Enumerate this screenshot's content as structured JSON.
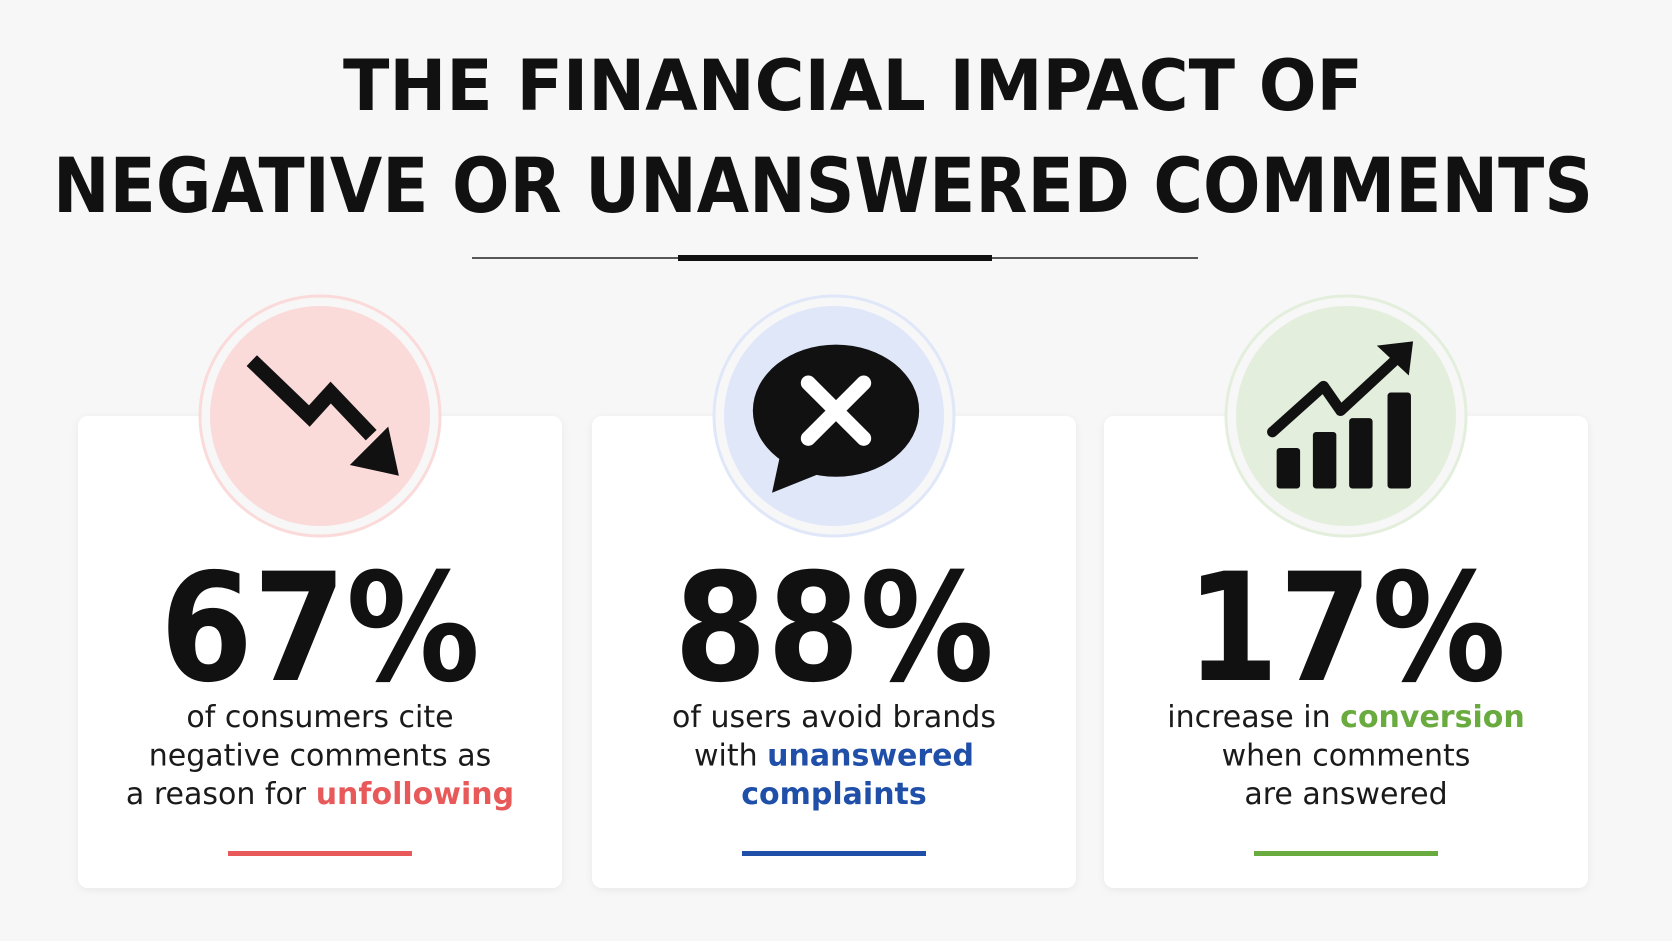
{
  "header": {
    "title_line1": "THE FINANCIAL IMPACT OF",
    "title_line2": "NEGATIVE OR UNANSWERED COMMENTS"
  },
  "cards": [
    {
      "stat": "67%",
      "accent": "#e85a5a",
      "circle": "#fbdada",
      "lines": [
        [
          {
            "text": "of consumers cite",
            "accent": false
          }
        ],
        [
          {
            "text": "negative comments as",
            "accent": false
          }
        ],
        [
          {
            "text": "a reason for ",
            "accent": false
          },
          {
            "text": "unfollowing",
            "accent": true
          }
        ]
      ]
    },
    {
      "stat": "88%",
      "accent": "#1f4fa8",
      "circle": "#dfe7f9",
      "lines": [
        [
          {
            "text": "of users avoid brands",
            "accent": false
          }
        ],
        [
          {
            "text": "with ",
            "accent": false
          },
          {
            "text": "unanswered",
            "accent": true
          }
        ],
        [
          {
            "text": "complaints",
            "accent": true
          }
        ]
      ]
    },
    {
      "stat": "17%",
      "accent": "#6aab3f",
      "circle": "#e3efdc",
      "lines": [
        [
          {
            "text": "increase in ",
            "accent": false
          },
          {
            "text": "conversion",
            "accent": true
          }
        ],
        [
          {
            "text": "when comments",
            "accent": false
          }
        ],
        [
          {
            "text": "are answered",
            "accent": false
          }
        ]
      ]
    }
  ]
}
